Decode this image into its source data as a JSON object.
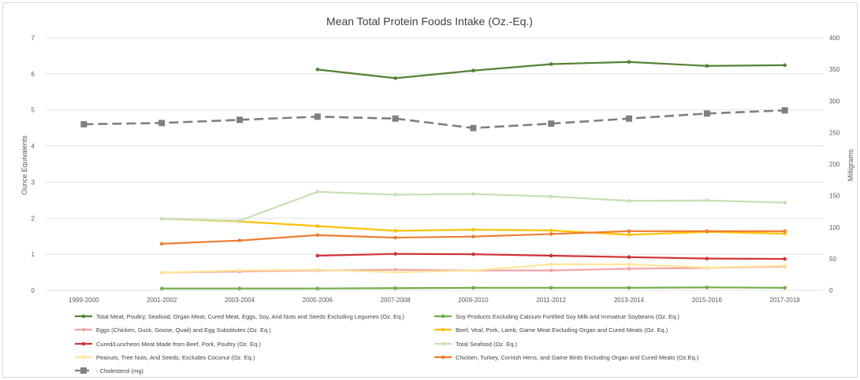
{
  "chart_data": {
    "type": "line",
    "title": "Mean Total Protein Foods Intake (Oz.-Eq.)",
    "ylabel": "Ounce Equivalents",
    "y2label": "Milligrams",
    "ylim": [
      0,
      7
    ],
    "y2lim": [
      0,
      400
    ],
    "yticks": [
      "0",
      "1",
      "2",
      "3",
      "4",
      "5",
      "6",
      "7"
    ],
    "y2ticks": [
      "0",
      "50",
      "100",
      "150",
      "200",
      "250",
      "300",
      "350",
      "400"
    ],
    "categories": [
      "1999-2000",
      "2001-2002",
      "2003-2004",
      "2005-2006",
      "2007-2008",
      "2009-2010",
      "2011-2012",
      "2013-2014",
      "2015-2016",
      "2017-2018"
    ],
    "grid": true,
    "legend_position": "bottom",
    "series": [
      {
        "name": "Total Meat, Poultry, Seafood, Organ Meat, Cured Meat, Eggs, Soy, And Nuts and Seeds Excluding Legumes (Oz. Eq.)",
        "axis": "left",
        "color": "#548235",
        "dash": false,
        "marker": "circle",
        "values": [
          null,
          null,
          null,
          6.12,
          5.88,
          6.09,
          6.27,
          6.33,
          6.22,
          6.24
        ]
      },
      {
        "name": "Soy Products Excluding Calcium Fortified Soy Milk and Immatrue Soybeans (Oz. Eq.)",
        "axis": "left",
        "color": "#70ad47",
        "dash": false,
        "marker": "circle",
        "values": [
          null,
          0.05,
          0.05,
          0.05,
          0.06,
          0.07,
          0.07,
          0.07,
          0.08,
          0.07
        ]
      },
      {
        "name": "Eggs (Chicken, Duck, Goose, Quail) and Egg Substitutes (Oz. Eq.)",
        "axis": "left",
        "color": "#f4a3a8",
        "dash": false,
        "marker": "circle",
        "values": [
          null,
          0.49,
          0.52,
          0.55,
          0.57,
          0.55,
          0.55,
          0.6,
          0.62,
          0.66
        ]
      },
      {
        "name": "Beef, Veal, Pork, Lamb, Game Meat Excluding Organ and Cured Meats (Oz. Eq.)",
        "axis": "left",
        "color": "#ffc000",
        "dash": false,
        "marker": "circle",
        "values": [
          null,
          1.98,
          1.91,
          1.78,
          1.65,
          1.68,
          1.66,
          1.54,
          1.62,
          1.57
        ]
      },
      {
        "name": "Cured/Luncheon Meat Made from Beef, Pork, Poultry (Oz. Eq.)",
        "axis": "left",
        "color": "#d13438",
        "dash": false,
        "marker": "circle",
        "values": [
          null,
          null,
          null,
          0.96,
          1.01,
          1.0,
          0.96,
          0.92,
          0.88,
          0.87
        ]
      },
      {
        "name": "Total Seafood (Oz. Eq.)",
        "axis": "left",
        "color": "#c5e0b4",
        "dash": false,
        "marker": "circle",
        "values": [
          null,
          1.98,
          1.93,
          2.73,
          2.65,
          2.67,
          2.6,
          2.48,
          2.49,
          2.43
        ]
      },
      {
        "name": "Peanuts, Tree Nuts, And Seeds, Excludes Coconut (Oz. Eq.)",
        "axis": "left",
        "color": "#ffe699",
        "dash": false,
        "marker": "circle",
        "values": [
          null,
          0.49,
          0.55,
          0.57,
          0.5,
          0.55,
          0.72,
          0.72,
          0.63,
          0.68
        ]
      },
      {
        "name": "Chicken, Turkey, Cornish Hens, and Game Birds Excluding Organ and Cured Meats (Oz.Eq.)",
        "axis": "left",
        "color": "#ed7d31",
        "dash": false,
        "marker": "circle",
        "values": [
          null,
          1.29,
          1.38,
          1.53,
          1.46,
          1.49,
          1.56,
          1.64,
          1.64,
          1.64
        ]
      },
      {
        "name": "Cholesterol (mg)",
        "axis": "right",
        "color": "#7f7f7f",
        "dash": true,
        "marker": "square",
        "values": [
          263,
          265,
          270,
          275,
          272,
          257,
          264,
          272,
          280,
          285
        ]
      }
    ],
    "legend_labels": [
      "Total Meat, Poultry, Seafood, Organ Meat, Cured Meat, Eggs, Soy, And Nuts and Seeds Excluding Legumes (Oz. Eq.)",
      "Soy Products Excluding Calcium Fortified Soy Milk and Immatrue Soybeans (Oz. Eq.)",
      "Eggs (Chicken, Duck, Goose, Quail) and Egg Substitutes (Oz. Eq.)",
      "Beef, Veal, Pork, Lamb, Game Meat Excluding Organ and Cured Meats (Oz. Eq.)",
      "Cured/Luncheon Meat Made from Beef, Pork, Poultry (Oz. Eq.)",
      "Total Seafood (Oz. Eq.)",
      "Peanuts, Tree Nuts, And Seeds, Excludes Coconut (Oz. Eq.)",
      "Chicken, Turkey, Cornish Hens, and Game Birds Excluding Organ and Cured Meats (Oz.Eq.)",
      "- Cholesterol (mg)"
    ]
  }
}
